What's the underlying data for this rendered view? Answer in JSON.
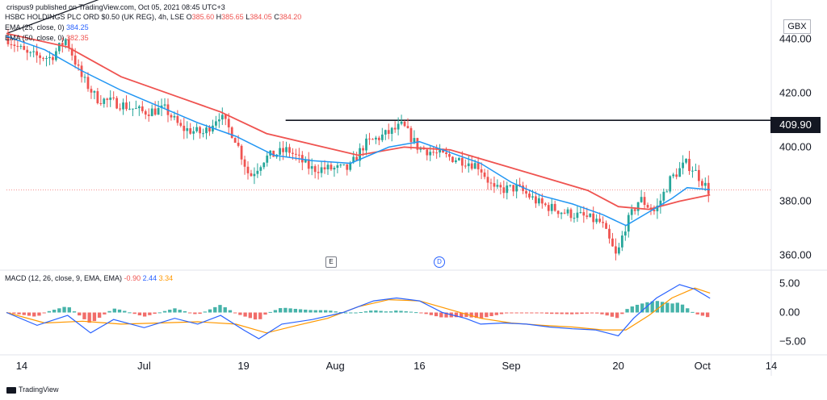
{
  "credit": "crispus9 published on TradingView.com, Oct 05, 2021 08:45 UTC+3",
  "header": {
    "symbol": "HSBC HOLDINGS PLC ORD $0.50 (UK REG), 4h, LSE",
    "o_label": "O",
    "o": "385.60",
    "h_label": "H",
    "h": "385.65",
    "l_label": "L",
    "l": "384.05",
    "c_label": "C",
    "c": "384.20",
    "ema25_label": "EMA (25, close, 0)",
    "ema25_value": "384.25",
    "ema50_label": "EMA (50, close, 0)",
    "ema50_value": "382.35",
    "macd_label": "MACD (12, 26, close, 9, EMA, EMA)",
    "macd_hist": "-0.90",
    "macd_line": "2.44",
    "macd_signal": "3.34"
  },
  "currency": "GBX",
  "level_tag": "409.90",
  "events": {
    "earnings": "E",
    "dividend": "D"
  },
  "footer": "TradingView",
  "colors": {
    "up": "#26a69a",
    "down": "#ef5350",
    "ema25": "#2196f3",
    "ema50": "#ef5350",
    "macd": "#2962ff",
    "signal": "#ff9800",
    "hist_up": "#26a69a",
    "hist_down": "#ef5350"
  },
  "chart_data": {
    "type": "candlestick",
    "price_axis": {
      "ticks": [
        440,
        420,
        400,
        380,
        360
      ],
      "tick_labels": [
        "440.00",
        "420.00",
        "400.00",
        "380.00",
        "360.00"
      ],
      "range": [
        356,
        452
      ]
    },
    "macd_axis": {
      "ticks": [
        5,
        0,
        -5
      ],
      "tick_labels": [
        "5.00",
        "0.00",
        "−5.00"
      ],
      "range": [
        -7,
        7
      ]
    },
    "time_labels": [
      {
        "label": "14",
        "t": 0.02
      },
      {
        "label": "Jul",
        "t": 0.18
      },
      {
        "label": "19",
        "t": 0.31
      },
      {
        "label": "Aug",
        "t": 0.43
      },
      {
        "label": "16",
        "t": 0.54
      },
      {
        "label": "Sep",
        "t": 0.66
      },
      {
        "label": "20",
        "t": 0.8
      },
      {
        "label": "Oct",
        "t": 0.91
      },
      {
        "label": "14",
        "t": 1.0
      }
    ],
    "horizontal_level": 409.9,
    "trendline": [
      {
        "t": 0.0,
        "v": 442
      },
      {
        "t": 0.365,
        "v": 480
      }
    ],
    "current_price_line": 384.2,
    "close_path": [
      [
        0.0,
        441
      ],
      [
        0.03,
        434
      ],
      [
        0.06,
        433
      ],
      [
        0.08,
        440
      ],
      [
        0.1,
        426
      ],
      [
        0.12,
        418
      ],
      [
        0.15,
        416
      ],
      [
        0.18,
        413
      ],
      [
        0.21,
        414
      ],
      [
        0.23,
        407
      ],
      [
        0.26,
        405
      ],
      [
        0.28,
        412
      ],
      [
        0.3,
        404
      ],
      [
        0.32,
        389
      ],
      [
        0.34,
        396
      ],
      [
        0.37,
        399
      ],
      [
        0.4,
        392
      ],
      [
        0.43,
        392
      ],
      [
        0.45,
        392
      ],
      [
        0.47,
        401
      ],
      [
        0.5,
        405
      ],
      [
        0.52,
        408
      ],
      [
        0.54,
        400
      ],
      [
        0.57,
        397
      ],
      [
        0.6,
        395
      ],
      [
        0.62,
        393
      ],
      [
        0.64,
        384
      ],
      [
        0.67,
        385
      ],
      [
        0.7,
        379
      ],
      [
        0.73,
        376
      ],
      [
        0.76,
        374
      ],
      [
        0.78,
        372
      ],
      [
        0.8,
        359
      ],
      [
        0.81,
        370
      ],
      [
        0.83,
        381
      ],
      [
        0.85,
        376
      ],
      [
        0.87,
        388
      ],
      [
        0.89,
        394
      ],
      [
        0.9,
        392
      ],
      [
        0.91,
        388
      ],
      [
        0.92,
        384
      ]
    ],
    "ema25": [
      [
        0.0,
        441
      ],
      [
        0.05,
        436
      ],
      [
        0.1,
        428
      ],
      [
        0.15,
        421
      ],
      [
        0.2,
        415
      ],
      [
        0.25,
        409
      ],
      [
        0.3,
        404
      ],
      [
        0.35,
        397
      ],
      [
        0.4,
        395
      ],
      [
        0.45,
        394
      ],
      [
        0.5,
        400
      ],
      [
        0.54,
        402
      ],
      [
        0.58,
        398
      ],
      [
        0.62,
        394
      ],
      [
        0.66,
        387
      ],
      [
        0.7,
        382
      ],
      [
        0.74,
        379
      ],
      [
        0.78,
        375
      ],
      [
        0.81,
        371
      ],
      [
        0.84,
        376
      ],
      [
        0.87,
        381
      ],
      [
        0.89,
        385
      ],
      [
        0.92,
        384.25
      ]
    ],
    "ema50": [
      [
        0.0,
        442
      ],
      [
        0.08,
        437
      ],
      [
        0.15,
        426
      ],
      [
        0.22,
        419
      ],
      [
        0.28,
        413
      ],
      [
        0.34,
        405
      ],
      [
        0.4,
        401
      ],
      [
        0.46,
        397
      ],
      [
        0.52,
        400
      ],
      [
        0.58,
        399
      ],
      [
        0.64,
        394
      ],
      [
        0.7,
        389
      ],
      [
        0.76,
        384
      ],
      [
        0.8,
        378
      ],
      [
        0.84,
        377
      ],
      [
        0.88,
        380
      ],
      [
        0.92,
        382.35
      ]
    ],
    "macd_line": [
      [
        0.0,
        0.0
      ],
      [
        0.04,
        -2.2
      ],
      [
        0.08,
        -0.5
      ],
      [
        0.11,
        -3.5
      ],
      [
        0.14,
        -1.2
      ],
      [
        0.18,
        -2.6
      ],
      [
        0.22,
        -1.0
      ],
      [
        0.25,
        -2.0
      ],
      [
        0.28,
        -0.5
      ],
      [
        0.31,
        -3.0
      ],
      [
        0.33,
        -4.5
      ],
      [
        0.36,
        -2.0
      ],
      [
        0.4,
        -1.2
      ],
      [
        0.44,
        0.0
      ],
      [
        0.48,
        2.0
      ],
      [
        0.51,
        2.5
      ],
      [
        0.54,
        2.0
      ],
      [
        0.57,
        0.0
      ],
      [
        0.6,
        -1.0
      ],
      [
        0.62,
        -2.0
      ],
      [
        0.65,
        -1.8
      ],
      [
        0.68,
        -2.0
      ],
      [
        0.71,
        -2.5
      ],
      [
        0.74,
        -2.8
      ],
      [
        0.77,
        -3.0
      ],
      [
        0.8,
        -4.0
      ],
      [
        0.82,
        -1.0
      ],
      [
        0.85,
        2.5
      ],
      [
        0.88,
        4.8
      ],
      [
        0.9,
        4.0
      ],
      [
        0.92,
        2.44
      ]
    ],
    "signal_line": [
      [
        0.0,
        0.0
      ],
      [
        0.05,
        -1.8
      ],
      [
        0.1,
        -1.5
      ],
      [
        0.15,
        -2.0
      ],
      [
        0.2,
        -1.8
      ],
      [
        0.25,
        -1.6
      ],
      [
        0.3,
        -2.0
      ],
      [
        0.34,
        -3.5
      ],
      [
        0.38,
        -2.2
      ],
      [
        0.42,
        -1.0
      ],
      [
        0.46,
        1.0
      ],
      [
        0.5,
        2.2
      ],
      [
        0.54,
        2.0
      ],
      [
        0.58,
        0.5
      ],
      [
        0.62,
        -1.0
      ],
      [
        0.66,
        -1.8
      ],
      [
        0.7,
        -2.2
      ],
      [
        0.74,
        -2.5
      ],
      [
        0.78,
        -3.0
      ],
      [
        0.81,
        -3.0
      ],
      [
        0.84,
        -0.5
      ],
      [
        0.87,
        2.5
      ],
      [
        0.9,
        4.2
      ],
      [
        0.92,
        3.34
      ]
    ]
  }
}
